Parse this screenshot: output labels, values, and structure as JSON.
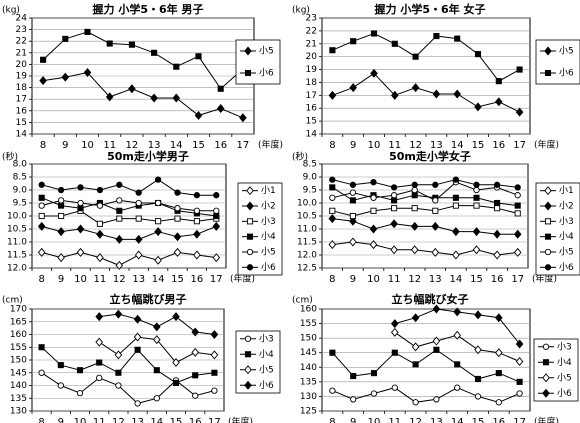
{
  "chart_data": [
    {
      "type": "line",
      "title": "握力 小学5・6年 男子",
      "unit_label": "(kg)",
      "x_unit": "(年度)",
      "x": [
        8,
        9,
        10,
        11,
        12,
        13,
        14,
        15,
        16,
        17
      ],
      "ylim": [
        14,
        24
      ],
      "yticks": [
        14,
        15,
        16,
        17,
        18,
        19,
        20,
        21,
        22,
        23,
        24
      ],
      "yreverse": false,
      "grid": true,
      "series": [
        {
          "name": "小5",
          "marker": "diamond",
          "values": [
            18.6,
            18.9,
            19.3,
            17.2,
            17.9,
            17.1,
            17.1,
            15.6,
            16.2,
            15.4
          ]
        },
        {
          "name": "小6",
          "marker": "square",
          "values": [
            20.4,
            22.2,
            22.8,
            21.8,
            21.7,
            21.0,
            19.8,
            20.7,
            17.9,
            19.6
          ]
        }
      ]
    },
    {
      "type": "line",
      "title": "握力 小学5・6年 女子",
      "unit_label": "(kg)",
      "x_unit": "(年度)",
      "x": [
        8,
        9,
        10,
        11,
        12,
        13,
        14,
        15,
        16,
        17
      ],
      "ylim": [
        14,
        23
      ],
      "yticks": [
        14,
        15,
        16,
        17,
        18,
        19,
        20,
        21,
        22,
        23
      ],
      "yreverse": false,
      "grid": true,
      "series": [
        {
          "name": "小5",
          "marker": "diamond",
          "values": [
            17.0,
            17.6,
            18.7,
            17.0,
            17.6,
            17.1,
            17.1,
            16.1,
            16.5,
            15.7
          ]
        },
        {
          "name": "小6",
          "marker": "square",
          "values": [
            20.5,
            21.2,
            21.8,
            21.0,
            20.0,
            21.6,
            21.4,
            20.2,
            18.1,
            19.0
          ]
        }
      ]
    },
    {
      "type": "line",
      "title": "50m走小学男子",
      "unit_label": "(秒)",
      "x_unit": "(年度)",
      "x": [
        8,
        9,
        10,
        11,
        12,
        13,
        14,
        15,
        16,
        17
      ],
      "ylim": [
        8.0,
        12.0
      ],
      "yticks": [
        "8.0",
        "8.5",
        "9.0",
        "9.5",
        "10.0",
        "10.5",
        "11.0",
        "11.5",
        "12.0"
      ],
      "yreverse": true,
      "grid": true,
      "series": [
        {
          "name": "小1",
          "marker": "diamond-open",
          "values": [
            11.4,
            11.6,
            11.4,
            11.6,
            11.9,
            11.5,
            11.7,
            11.4,
            11.5,
            11.6
          ]
        },
        {
          "name": "小2",
          "marker": "diamond",
          "values": [
            10.4,
            10.6,
            10.5,
            10.7,
            10.9,
            10.9,
            10.6,
            10.8,
            10.7,
            10.4
          ]
        },
        {
          "name": "小3",
          "marker": "square-open",
          "values": [
            10.0,
            10.0,
            9.8,
            10.3,
            10.1,
            10.1,
            10.2,
            10.1,
            10.2,
            10.1
          ]
        },
        {
          "name": "小4",
          "marker": "square",
          "values": [
            9.3,
            9.6,
            9.7,
            9.5,
            9.8,
            9.6,
            9.5,
            9.8,
            9.9,
            10.0
          ]
        },
        {
          "name": "小5",
          "marker": "circle-open",
          "values": [
            9.6,
            9.4,
            9.5,
            9.6,
            9.4,
            9.5,
            9.5,
            9.7,
            9.8,
            9.8
          ]
        },
        {
          "name": "小6",
          "marker": "circle",
          "values": [
            8.8,
            9.0,
            8.9,
            9.0,
            8.8,
            9.1,
            8.6,
            9.1,
            9.2,
            9.2
          ]
        }
      ]
    },
    {
      "type": "line",
      "title": "50m走小学女子",
      "unit_label": "(秒)",
      "x_unit": "(年度)",
      "x": [
        8,
        9,
        10,
        11,
        12,
        13,
        14,
        15,
        16,
        17
      ],
      "ylim": [
        8.5,
        12.5
      ],
      "yticks": [
        "8.5",
        "9.0",
        "9.5",
        "10.0",
        "10.5",
        "11.0",
        "11.5",
        "12.0",
        "12.5"
      ],
      "yreverse": true,
      "grid": true,
      "series": [
        {
          "name": "小1",
          "marker": "diamond-open",
          "values": [
            11.6,
            11.5,
            11.6,
            11.8,
            11.8,
            11.9,
            12.0,
            11.8,
            12.0,
            11.9
          ]
        },
        {
          "name": "小2",
          "marker": "diamond",
          "values": [
            10.6,
            10.7,
            11.0,
            10.8,
            10.9,
            10.9,
            11.1,
            11.1,
            11.2,
            11.2
          ]
        },
        {
          "name": "小3",
          "marker": "square-open",
          "values": [
            10.3,
            10.5,
            10.3,
            10.2,
            10.2,
            10.3,
            10.1,
            10.1,
            10.2,
            10.4
          ]
        },
        {
          "name": "小4",
          "marker": "square",
          "values": [
            9.4,
            9.9,
            9.7,
            9.9,
            9.7,
            9.8,
            9.8,
            9.8,
            10.0,
            10.1
          ]
        },
        {
          "name": "小5",
          "marker": "circle-open",
          "values": [
            9.8,
            9.6,
            9.8,
            9.7,
            9.5,
            9.9,
            9.2,
            9.5,
            9.4,
            9.7
          ]
        },
        {
          "name": "小6",
          "marker": "circle",
          "values": [
            9.1,
            9.3,
            9.2,
            9.4,
            9.3,
            9.3,
            9.1,
            9.3,
            9.3,
            9.4
          ]
        }
      ]
    },
    {
      "type": "line",
      "title": "立ち幅跳び男子",
      "unit_label": "(cm)",
      "x_unit": "(年度)",
      "x": [
        8,
        9,
        10,
        11,
        12,
        13,
        14,
        15,
        16,
        17
      ],
      "ylim": [
        130,
        170
      ],
      "yticks": [
        130,
        135,
        140,
        145,
        150,
        155,
        160,
        165,
        170
      ],
      "yreverse": false,
      "grid": true,
      "series": [
        {
          "name": "小3",
          "marker": "circle-open",
          "values": [
            145,
            140,
            137,
            143,
            140,
            133,
            135,
            142,
            136,
            138
          ]
        },
        {
          "name": "小4",
          "marker": "square",
          "values": [
            155,
            148,
            146,
            149,
            145,
            154,
            146,
            141,
            144,
            145
          ]
        },
        {
          "name": "小5",
          "marker": "diamond-open",
          "values": [
            null,
            null,
            null,
            157,
            152,
            159,
            158,
            149,
            153,
            152
          ]
        },
        {
          "name": "小6",
          "marker": "diamond",
          "values": [
            null,
            null,
            null,
            167,
            168,
            166,
            163,
            167,
            161,
            160
          ]
        }
      ]
    },
    {
      "type": "line",
      "title": "立ち幅跳び女子",
      "unit_label": "(cm)",
      "x_unit": "(年度)",
      "x": [
        8,
        9,
        10,
        11,
        12,
        13,
        14,
        15,
        16,
        17
      ],
      "ylim": [
        125,
        160
      ],
      "yticks": [
        125,
        130,
        135,
        140,
        145,
        150,
        155,
        160
      ],
      "yreverse": false,
      "grid": true,
      "series": [
        {
          "name": "小3",
          "marker": "circle-open",
          "values": [
            132,
            129,
            131,
            133,
            128,
            129,
            133,
            130,
            128,
            131
          ]
        },
        {
          "name": "小4",
          "marker": "square",
          "values": [
            145,
            137,
            138,
            145,
            141,
            146,
            141,
            136,
            138,
            135
          ]
        },
        {
          "name": "小5",
          "marker": "diamond-open",
          "values": [
            null,
            null,
            null,
            152,
            147,
            149,
            151,
            146,
            145,
            142
          ]
        },
        {
          "name": "小6",
          "marker": "diamond",
          "values": [
            null,
            null,
            null,
            155,
            157,
            160,
            159,
            158,
            157,
            148
          ]
        }
      ]
    }
  ]
}
